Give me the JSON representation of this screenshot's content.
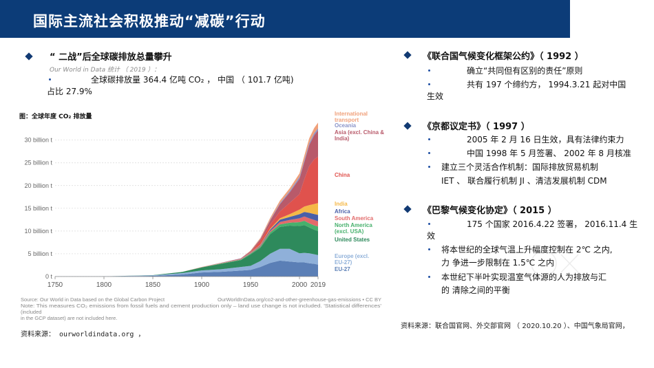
{
  "title": "国际主流社会积极推动“减碳”行动",
  "left": {
    "heading": "“ 二战”后全球碳排放总量攀升",
    "stat_source": "Our World in Data 统计 （ 2019 ）：",
    "bullet_line1": "全球碳排放量 364.4 亿吨 CO₂ ， 中国 （ 101.7 亿吨)",
    "bullet_line2": "占比 27.9%",
    "chart_caption": "图：全球年度 CO₂ 排放量",
    "footnote_source": "资料来源： ourworldindata.org ，"
  },
  "chart_data": {
    "type": "area",
    "title": "图：全球年度 CO₂ 排放量",
    "y_ticks": [
      "0 t",
      "5 billion t",
      "10 billion t",
      "15 billion t",
      "20 billion t",
      "25 billion t",
      "30 billion t"
    ],
    "x_ticks": [
      "1750",
      "1800",
      "1850",
      "1900",
      "1950",
      "2000",
      "2019"
    ],
    "ylim": [
      0,
      36
    ],
    "xlim": [
      1750,
      2019
    ],
    "legend_labels": [
      "International transport",
      "Oceania",
      "Asia (excl. China & India)",
      "China",
      "India",
      "Africa",
      "South America",
      "North America (excl. USA)",
      "United States",
      "Europe (excl. EU-27)",
      "EU-27"
    ],
    "x": [
      1750,
      1800,
      1850,
      1880,
      1900,
      1920,
      1940,
      1950,
      1960,
      1970,
      1980,
      1990,
      2000,
      2005,
      2010,
      2015,
      2019
    ],
    "series": [
      {
        "name": "EU-27",
        "color": "#5b7fb6",
        "values": [
          0.01,
          0.02,
          0.15,
          0.45,
          0.9,
          1.05,
          1.3,
          1.45,
          2.1,
          3.0,
          3.5,
          3.3,
          3.1,
          3.1,
          2.9,
          2.8,
          2.6
        ]
      },
      {
        "name": "Europe (excl. EU-27)",
        "color": "#8fb0d9",
        "values": [
          0.0,
          0.03,
          0.12,
          0.3,
          0.45,
          0.55,
          0.8,
          0.9,
          1.3,
          2.0,
          2.6,
          2.8,
          2.0,
          2.1,
          2.2,
          2.1,
          2.1
        ]
      },
      {
        "name": "United States",
        "color": "#2e8a5c",
        "values": [
          0.0,
          0.0,
          0.03,
          0.25,
          0.65,
          1.2,
          1.5,
          2.5,
          2.9,
          4.3,
          4.8,
          5.1,
          6.0,
          6.1,
          5.7,
          5.4,
          5.3
        ]
      },
      {
        "name": "North America (excl. USA)",
        "color": "#46b06c",
        "values": [
          0.0,
          0.0,
          0.0,
          0.01,
          0.03,
          0.08,
          0.1,
          0.18,
          0.25,
          0.4,
          0.55,
          0.65,
          0.85,
          0.95,
          0.9,
          0.95,
          1.0
        ]
      },
      {
        "name": "South America",
        "color": "#e26a6a",
        "values": [
          0.0,
          0.0,
          0.0,
          0.01,
          0.02,
          0.04,
          0.06,
          0.1,
          0.18,
          0.3,
          0.55,
          0.6,
          0.85,
          0.95,
          1.1,
          1.2,
          1.15
        ]
      },
      {
        "name": "Africa",
        "color": "#4a5fa8",
        "values": [
          0.0,
          0.0,
          0.0,
          0.0,
          0.01,
          0.02,
          0.04,
          0.08,
          0.15,
          0.3,
          0.5,
          0.65,
          0.9,
          1.0,
          1.2,
          1.3,
          1.4
        ]
      },
      {
        "name": "India",
        "color": "#f5b847",
        "values": [
          0.0,
          0.0,
          0.0,
          0.0,
          0.01,
          0.02,
          0.03,
          0.06,
          0.12,
          0.2,
          0.3,
          0.6,
          1.0,
          1.2,
          1.7,
          2.2,
          2.6
        ]
      },
      {
        "name": "China",
        "color": "#e0524d",
        "values": [
          0.0,
          0.0,
          0.0,
          0.0,
          0.01,
          0.01,
          0.03,
          0.08,
          0.8,
          0.9,
          1.5,
          2.5,
          3.4,
          6.0,
          8.6,
          9.8,
          10.2
        ]
      },
      {
        "name": "Asia (excl. China & India)",
        "color": "#b85a6a",
        "values": [
          0.0,
          0.0,
          0.0,
          0.0,
          0.02,
          0.05,
          0.12,
          0.2,
          0.4,
          0.9,
          1.6,
          2.3,
          3.4,
          3.8,
          4.6,
          5.3,
          5.8
        ]
      },
      {
        "name": "Oceania",
        "color": "#8a94c8",
        "values": [
          0.0,
          0.0,
          0.0,
          0.0,
          0.01,
          0.02,
          0.03,
          0.05,
          0.08,
          0.15,
          0.22,
          0.3,
          0.38,
          0.42,
          0.45,
          0.44,
          0.45
        ]
      },
      {
        "name": "International transport",
        "color": "#f0a07a",
        "values": [
          0.0,
          0.0,
          0.0,
          0.0,
          0.0,
          0.0,
          0.0,
          0.1,
          0.2,
          0.4,
          0.55,
          0.6,
          0.8,
          0.95,
          1.05,
          1.15,
          1.25
        ]
      }
    ],
    "source_note": "Source: Our World in Data based on the Global Carbon Project",
    "url_note": "OurWorldInData.org/co2-and-other-greenhouse-gas-emissions • CC BY",
    "note_line1": "Note: This measures CO₂ emissions from fossil fuels and cement production only – land use change is not included. 'Statistical differences'",
    "note_line2": "(included",
    "note_line3": "in the GCP dataset) are not included here."
  },
  "right": {
    "sec1_heading": "《联合国气候变化框架公约》（ 1992 ）",
    "sec1_b1": "确立“共同但有区别的责任”原则",
    "sec1_b2_l1": "共有 197 个缔约方， 1994.3.21 起对中国",
    "sec1_b2_l2": "生效",
    "sec2_heading": "《京都议定书》（ 1997 ）",
    "sec2_b1": "2005 年 2 月 16 日生效，具有法律约束力",
    "sec2_b2": "中国 1998 年 5 月签署、 2002 年 8 月核准",
    "sec2_b3_l1": "建立三个灵活合作机制：国际排放贸易机制",
    "sec2_b3_l2": "IET 、 联合履行机制 JI 、清洁发展机制 CDM",
    "sec3_heading": "《巴黎气候变化协定》（ 2015 ）",
    "sec3_b1_l1": "175 个国家 2016.4.22 签署， 2016.11.4 生",
    "sec3_b1_l2": "效",
    "sec3_b2_l1": "将本世纪的全球气温上升幅度控制在 2℃ 之内,",
    "sec3_b2_l2": "力 争进一步限制在 1.5℃ 之内",
    "sec3_b3_l1": "本世纪下半叶实现温室气体源的人为排放与汇",
    "sec3_b3_l2": "的 清除之间的平衡",
    "footnote_source": "资料来源：联合国官网、外交部官网 （ 2020.10.20 ）、中国气象局官网，"
  },
  "colors": {
    "title_bar": "#0c3c78",
    "bullet": "#123a73"
  }
}
